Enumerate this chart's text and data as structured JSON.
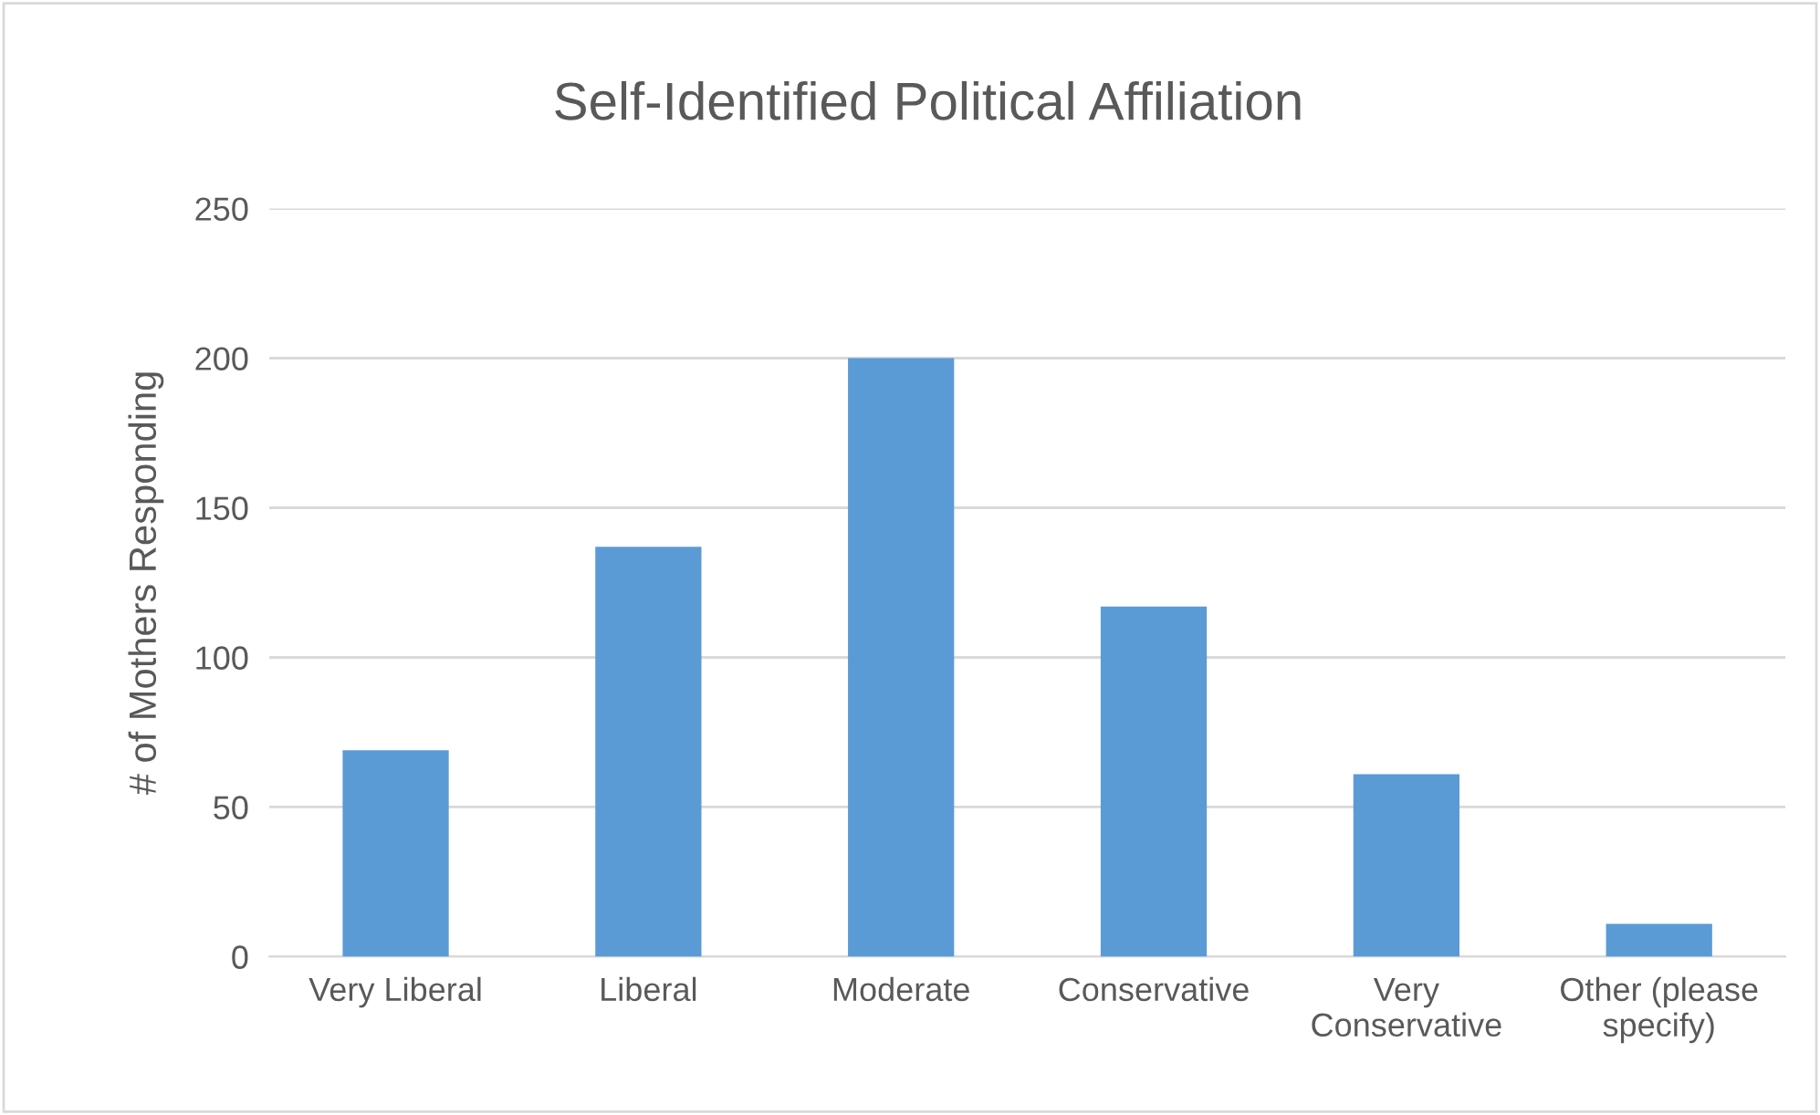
{
  "chart_data": {
    "type": "bar",
    "title": "Self-Identified Political Affiliation",
    "ylabel": "# of Mothers Responding",
    "categories": [
      "Very Liberal",
      "Liberal",
      "Moderate",
      "Conservative",
      "Very\nConservative",
      "Other (please\nspecify)"
    ],
    "values": [
      69,
      137,
      200,
      117,
      61,
      11
    ],
    "color": "#5b9bd5",
    "ylim": [
      0,
      250
    ],
    "yticks": [
      0,
      50,
      100,
      150,
      200,
      250
    ],
    "grid": "y",
    "legend": false
  }
}
